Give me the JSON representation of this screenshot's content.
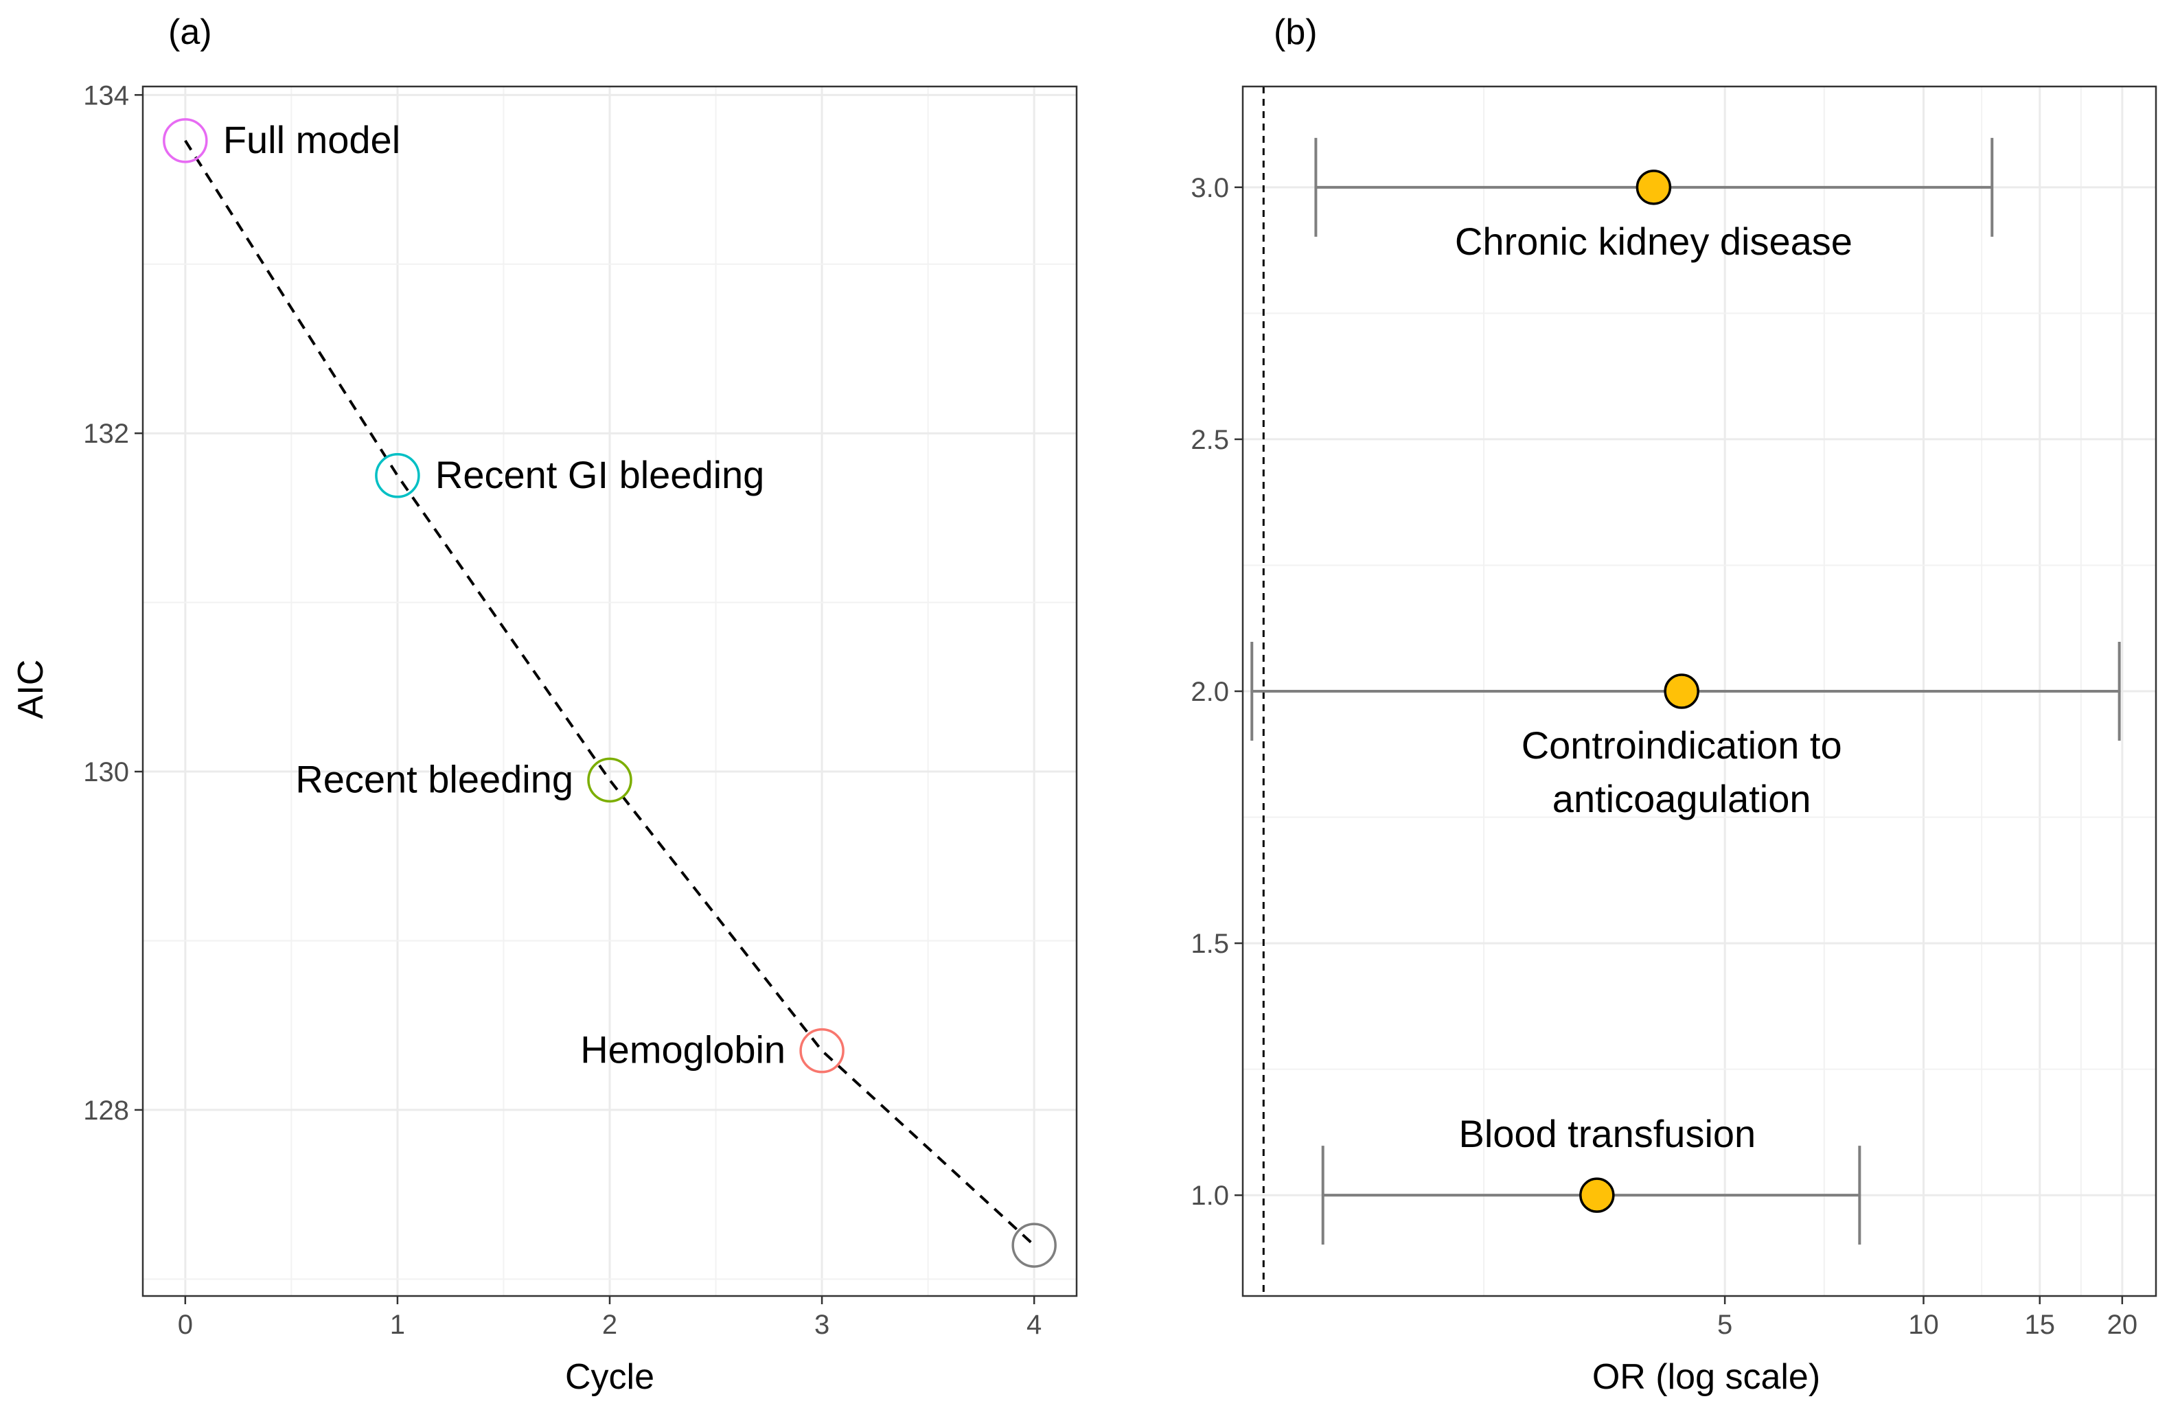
{
  "chart_data": [
    {
      "type": "line",
      "panel_label": "(a)",
      "xlabel": "Cycle",
      "ylabel": "AIC",
      "xlim": [
        -0.2,
        4.2
      ],
      "ylim": [
        126.9,
        134.05
      ],
      "x_ticks": [
        0,
        1,
        2,
        3,
        4
      ],
      "x_tick_labels": [
        "0",
        "1",
        "2",
        "3",
        "4"
      ],
      "y_ticks": [
        128,
        130,
        132,
        134
      ],
      "y_tick_labels": [
        "128",
        "130",
        "132",
        "134"
      ],
      "grid": true,
      "points": [
        {
          "x": 0,
          "y": 133.73,
          "label": "Full model",
          "color": "#E76BF3",
          "label_side": "right"
        },
        {
          "x": 1,
          "y": 131.75,
          "label": "Recent GI bleeding",
          "color": "#00BFC4",
          "label_side": "right"
        },
        {
          "x": 2,
          "y": 129.95,
          "label": "Recent bleeding",
          "color": "#7CAE00",
          "label_side": "left"
        },
        {
          "x": 3,
          "y": 128.35,
          "label": "Hemoglobin",
          "color": "#F8766D",
          "label_side": "left"
        },
        {
          "x": 4,
          "y": 127.2,
          "label": "",
          "color": "#7F7F7F",
          "label_side": "none"
        }
      ],
      "line_style": "dashed"
    },
    {
      "type": "scatter",
      "panel_label": "(b)",
      "xlabel": "OR (log scale)",
      "ylabel": "",
      "x_scale": "log",
      "xlim": [
        0.93,
        22.5
      ],
      "ylim": [
        0.8,
        3.2
      ],
      "x_ticks": [
        5,
        10,
        15,
        20
      ],
      "x_tick_labels": [
        "5",
        "10",
        "15",
        "20"
      ],
      "y_ticks": [
        1.0,
        1.5,
        2.0,
        2.5,
        3.0
      ],
      "y_tick_labels": [
        "1.0",
        "1.5",
        "2.0",
        "2.5",
        "3.0"
      ],
      "grid": true,
      "reference_line_x": 1,
      "estimates": [
        {
          "y": 3.0,
          "or": 3.9,
          "lower": 1.2,
          "upper": 12.7,
          "label": "Chronic kidney disease",
          "label_lines": [
            "Chronic kidney disease"
          ]
        },
        {
          "y": 2.0,
          "or": 4.3,
          "lower": 0.96,
          "upper": 19.8,
          "label": "Controindication to anticoagulation",
          "label_lines": [
            "Controindication to",
            "anticoagulation"
          ]
        },
        {
          "y": 1.0,
          "or": 3.2,
          "lower": 1.23,
          "upper": 8.0,
          "label": "Blood transfusion",
          "label_lines": [
            "Blood transfusion"
          ]
        }
      ],
      "point_color": "#FFC107",
      "errorbar_color": "#7F7F7F"
    }
  ]
}
